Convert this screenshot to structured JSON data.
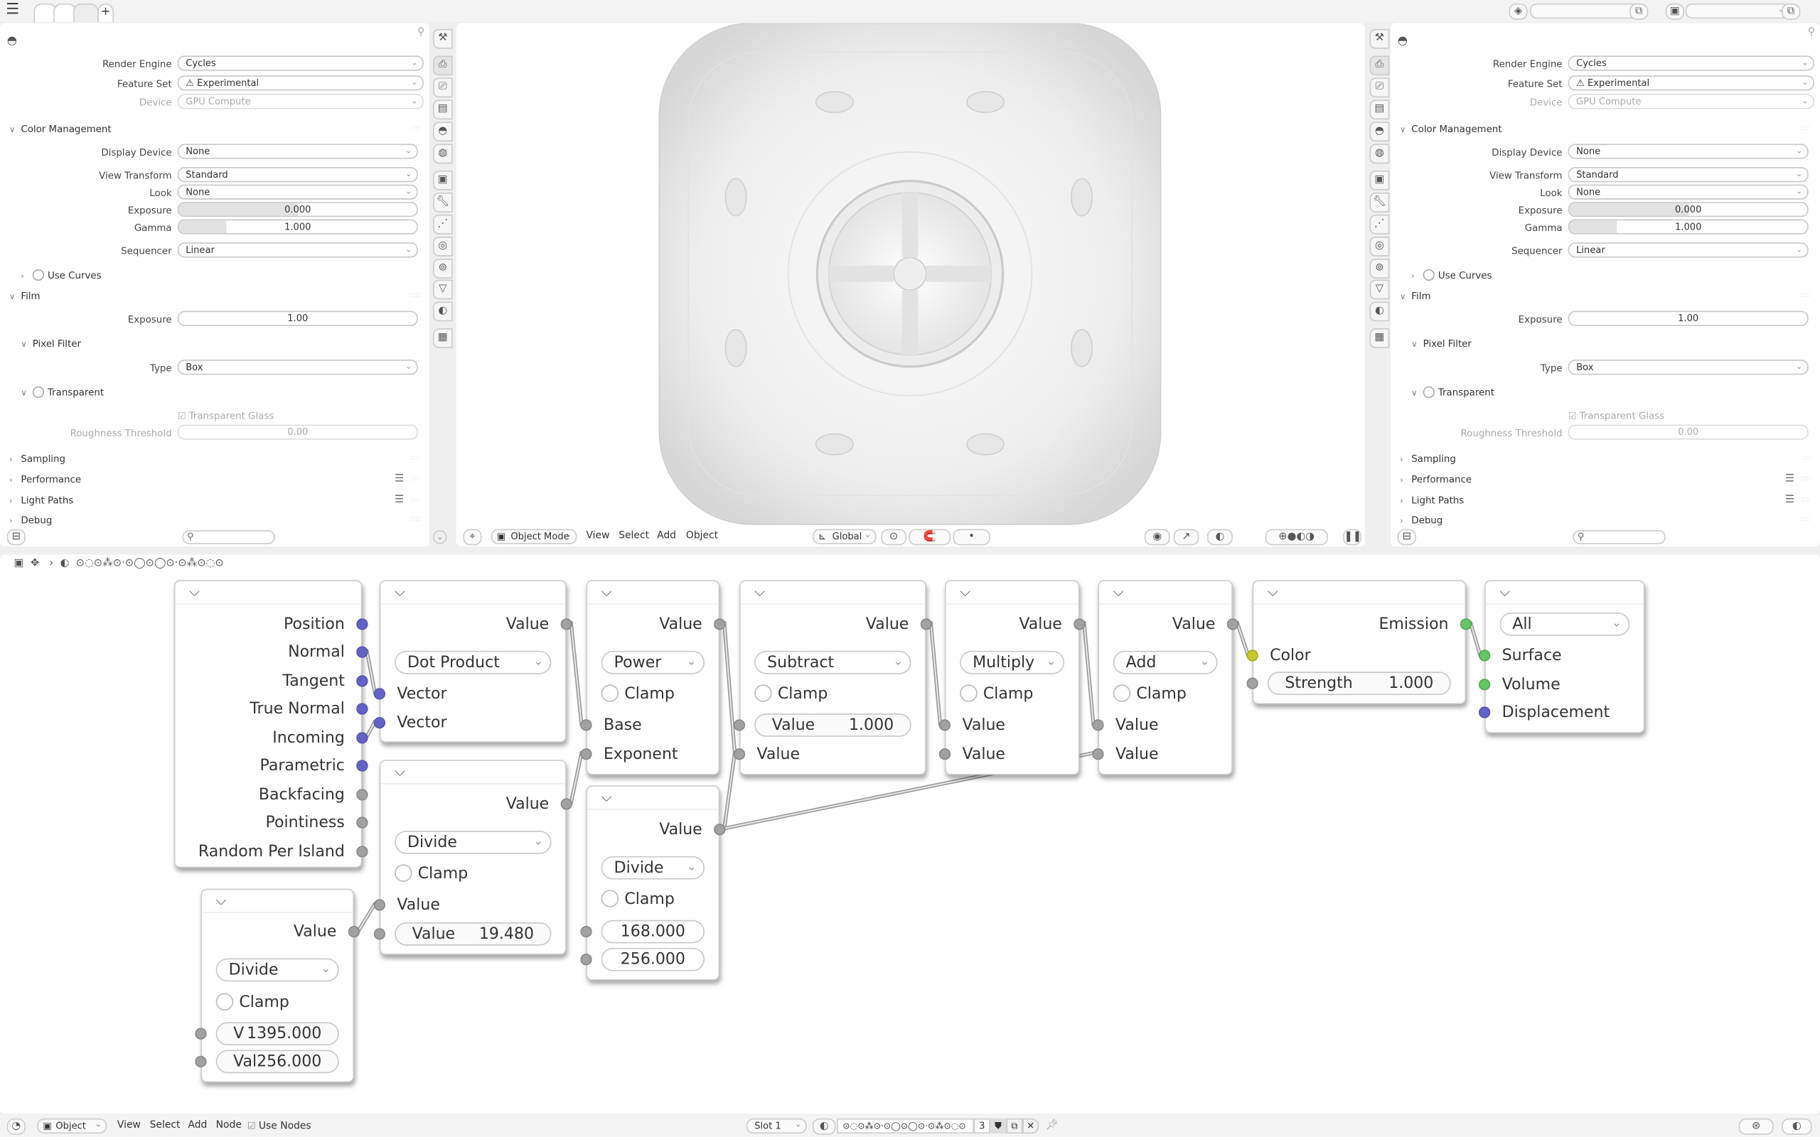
{
  "topbar": {
    "menu_icon": "hamburger-icon",
    "workspace_tabs": [
      "",
      "",
      ""
    ],
    "add_tab_label": "+"
  },
  "properties": {
    "rows": [
      {
        "type": "select",
        "label": "Render Engine",
        "value": "Cycles"
      },
      {
        "type": "select",
        "label": "Feature Set",
        "value": "Experimental",
        "icon": "warning-icon"
      },
      {
        "type": "select",
        "label": "Device",
        "value": "GPU Compute",
        "disabled": true
      },
      {
        "type": "panel",
        "label": "Color Management",
        "open": true
      },
      {
        "type": "select",
        "label": "Display Device",
        "value": "None"
      },
      {
        "type": "select",
        "label": "View Transform",
        "value": "Standard"
      },
      {
        "type": "select",
        "label": "Look",
        "value": "None"
      },
      {
        "type": "slider",
        "label": "Exposure",
        "value": "0.000",
        "fill": 0.5
      },
      {
        "type": "slider",
        "label": "Gamma",
        "value": "1.000",
        "fill": 0.2
      },
      {
        "type": "select",
        "label": "Sequencer",
        "value": "Linear"
      },
      {
        "type": "subpanel",
        "label": "Use Curves",
        "open": false,
        "checkbox": true
      },
      {
        "type": "panel",
        "label": "Film",
        "open": true
      },
      {
        "type": "number",
        "label": "Exposure",
        "value": "1.00"
      },
      {
        "type": "subpanel",
        "label": "Pixel Filter",
        "open": true
      },
      {
        "type": "select",
        "label": "Type",
        "value": "Box"
      },
      {
        "type": "subpanel",
        "label": "Transparent",
        "open": true,
        "checkbox": true
      },
      {
        "type": "check",
        "label": "Transparent Glass",
        "checked": true,
        "disabled": true
      },
      {
        "type": "number",
        "label": "Roughness Threshold",
        "value": "0.00",
        "disabled": true
      },
      {
        "type": "panel",
        "label": "Sampling",
        "open": false
      },
      {
        "type": "panel",
        "label": "Performance",
        "open": false,
        "list": true
      },
      {
        "type": "panel",
        "label": "Light Paths",
        "open": false,
        "list": true
      },
      {
        "type": "panel",
        "label": "Debug",
        "open": false
      }
    ],
    "tabs": [
      "tool",
      "render",
      "output",
      "view-layer",
      "scene",
      "world",
      "object",
      "modifiers",
      "particles",
      "physics",
      "constraints",
      "data",
      "material",
      "texture"
    ],
    "active_tab": "render"
  },
  "viewport": {
    "mode": "Object Mode",
    "menus": [
      "View",
      "Select",
      "Add",
      "Object"
    ],
    "orientation": "Global"
  },
  "node_editor": {
    "breadcrumb": "⊙◌⊙⁂⊙·⊙◯⊙◯⊙·⊙⁂⊙◌⊙",
    "socket_colors": {
      "vector": "#6363c7",
      "float": "#a1a1a1",
      "color": "#c7c729",
      "shader": "#63c763"
    },
    "nodes": [
      {
        "rows": [
          {
            "t": "out",
            "label": "Position",
            "s": "vector"
          },
          {
            "t": "out",
            "label": "Normal",
            "s": "vector"
          },
          {
            "t": "out",
            "label": "Tangent",
            "s": "vector"
          },
          {
            "t": "out",
            "label": "True Normal",
            "s": "vector"
          },
          {
            "t": "out",
            "label": "Incoming",
            "s": "vector"
          },
          {
            "t": "out",
            "label": "Parametric",
            "s": "vector"
          },
          {
            "t": "out",
            "label": "Backfacing",
            "s": "float"
          },
          {
            "t": "out",
            "label": "Pointiness",
            "s": "float"
          },
          {
            "t": "out",
            "label": "Random Per Island",
            "s": "float"
          }
        ]
      },
      {
        "rows": [
          {
            "t": "out",
            "label": "Value",
            "s": "float"
          },
          {
            "t": "select",
            "label": "Dot Product"
          },
          {
            "t": "in",
            "label": "Vector",
            "s": "vector"
          },
          {
            "t": "in",
            "label": "Vector",
            "s": "vector"
          }
        ]
      },
      {
        "rows": [
          {
            "t": "out",
            "label": "Value",
            "s": "float"
          },
          {
            "t": "select",
            "label": "Power"
          },
          {
            "t": "check",
            "label": "Clamp"
          },
          {
            "t": "in",
            "label": "Base",
            "s": "float"
          },
          {
            "t": "in",
            "label": "Exponent",
            "s": "float"
          }
        ]
      },
      {
        "rows": [
          {
            "t": "out",
            "label": "Value",
            "s": "float"
          },
          {
            "t": "select",
            "label": "Subtract"
          },
          {
            "t": "check",
            "label": "Clamp"
          },
          {
            "t": "field",
            "label": "Value",
            "value": "1.000",
            "s": "float"
          },
          {
            "t": "in",
            "label": "Value",
            "s": "float"
          }
        ]
      },
      {
        "rows": [
          {
            "t": "out",
            "label": "Value",
            "s": "float"
          },
          {
            "t": "select",
            "label": "Multiply"
          },
          {
            "t": "check",
            "label": "Clamp"
          },
          {
            "t": "in",
            "label": "Value",
            "s": "float"
          },
          {
            "t": "in",
            "label": "Value",
            "s": "float"
          }
        ]
      },
      {
        "rows": [
          {
            "t": "out",
            "label": "Value",
            "s": "float"
          },
          {
            "t": "select",
            "label": "Add"
          },
          {
            "t": "check",
            "label": "Clamp"
          },
          {
            "t": "in",
            "label": "Value",
            "s": "float"
          },
          {
            "t": "in",
            "label": "Value",
            "s": "float"
          }
        ]
      },
      {
        "rows": [
          {
            "t": "out",
            "label": "Emission",
            "s": "shader"
          },
          {
            "t": "in",
            "label": "Color",
            "s": "color"
          },
          {
            "t": "field",
            "label": "Strength",
            "value": "1.000",
            "s": "float"
          }
        ]
      },
      {
        "rows": [
          {
            "t": "select",
            "label": "All"
          },
          {
            "t": "in",
            "label": "Surface",
            "s": "shader"
          },
          {
            "t": "in",
            "label": "Volume",
            "s": "shader"
          },
          {
            "t": "in",
            "label": "Displacement",
            "s": "vector"
          }
        ]
      },
      {
        "rows": [
          {
            "t": "out",
            "label": "Value",
            "s": "float"
          },
          {
            "t": "select",
            "label": "Divide"
          },
          {
            "t": "check",
            "label": "Clamp"
          },
          {
            "t": "in",
            "label": "Value",
            "s": "float"
          },
          {
            "t": "field",
            "label": "Value",
            "value": "19.480",
            "s": "float"
          }
        ]
      },
      {
        "rows": [
          {
            "t": "out",
            "label": "Value",
            "s": "float"
          },
          {
            "t": "select",
            "label": "Divide"
          },
          {
            "t": "check",
            "label": "Clamp"
          },
          {
            "t": "num",
            "value": "168.000",
            "s": "float"
          },
          {
            "t": "num",
            "value": "256.000",
            "s": "float"
          }
        ]
      },
      {
        "rows": [
          {
            "t": "out",
            "label": "Value",
            "s": "float"
          },
          {
            "t": "select",
            "label": "Divide"
          },
          {
            "t": "check",
            "label": "Clamp"
          },
          {
            "t": "field",
            "label": "V",
            "value": "1395.000",
            "s": "float"
          },
          {
            "t": "field",
            "label": "Val",
            "value": "256.000",
            "s": "float"
          }
        ]
      }
    ],
    "links": [
      [
        [
          0,
          1
        ],
        [
          1,
          2
        ]
      ],
      [
        [
          0,
          4
        ],
        [
          1,
          3
        ]
      ],
      [
        [
          1,
          0
        ],
        [
          2,
          3
        ]
      ],
      [
        [
          8,
          0
        ],
        [
          2,
          4
        ]
      ],
      [
        [
          10,
          0
        ],
        [
          8,
          3
        ]
      ],
      [
        [
          2,
          0
        ],
        [
          3,
          4
        ]
      ],
      [
        [
          9,
          0
        ],
        [
          3,
          4
        ]
      ],
      [
        [
          3,
          0
        ],
        [
          4,
          3
        ]
      ],
      [
        [
          4,
          0
        ],
        [
          5,
          3
        ]
      ],
      [
        [
          9,
          0
        ],
        [
          5,
          4
        ]
      ],
      [
        [
          5,
          0
        ],
        [
          6,
          1
        ]
      ],
      [
        [
          6,
          0
        ],
        [
          7,
          1
        ]
      ]
    ]
  },
  "bottombar": {
    "mode": "Object",
    "menus": [
      "View",
      "Select",
      "Add",
      "Node"
    ],
    "use_nodes_label": "Use Nodes",
    "use_nodes": true,
    "slot": "Slot 1",
    "material": "⊙◌⊙⁂⊙·⊙◯⊙◯⊙·⊙⁂⊙◌⊙",
    "users": "3"
  }
}
